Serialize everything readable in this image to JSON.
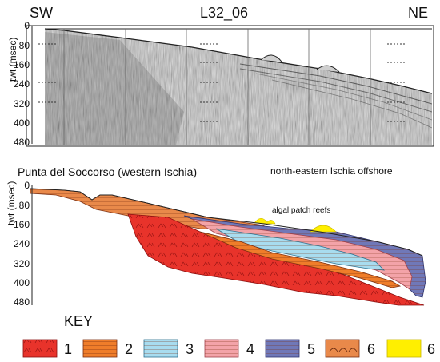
{
  "profile_id": "L32_06",
  "direction_left": "SW",
  "direction_right": "NE",
  "y_axis_label": "twt (msec)",
  "y_ticks": [
    "0",
    "80",
    "160",
    "240",
    "320",
    "400",
    "480"
  ],
  "location_left": "Punta del Soccorso (western Ischia)",
  "location_right": "north-eastern Ischia offshore",
  "annotation": "algal patch reefs",
  "key_title": "KEY",
  "key_items": [
    {
      "label": "1",
      "fill": "#e8332b",
      "pattern": "volcanic"
    },
    {
      "label": "2",
      "fill": "#ef7d2a",
      "pattern": "lines"
    },
    {
      "label": "3",
      "fill": "#a8dcef",
      "pattern": "lines"
    },
    {
      "label": "4",
      "fill": "#f3a3a8",
      "pattern": "lines"
    },
    {
      "label": "5",
      "fill": "#7078b8",
      "pattern": "lines"
    },
    {
      "label": "6",
      "fill": "#e9894a",
      "pattern": "arcs"
    },
    {
      "label": "6",
      "fill": "#ffef00",
      "pattern": "solid"
    }
  ]
}
